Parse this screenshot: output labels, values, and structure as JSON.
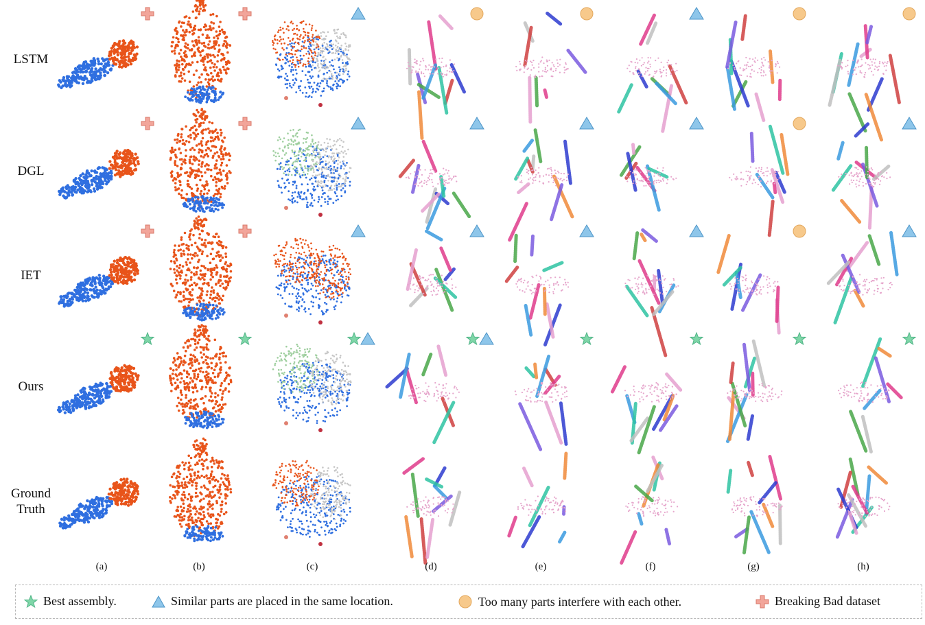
{
  "rows": [
    {
      "label": [
        "LSTM"
      ],
      "markers": [
        "cross",
        "cross",
        "triangle",
        "circle",
        "circle",
        "triangle",
        "circle",
        "circle"
      ]
    },
    {
      "label": [
        "DGL"
      ],
      "markers": [
        "cross",
        "cross",
        "triangle",
        "triangle",
        "triangle",
        "triangle",
        "circle",
        "triangle"
      ]
    },
    {
      "label": [
        "IET"
      ],
      "markers": [
        "cross",
        "cross",
        "triangle",
        "triangle",
        "triangle",
        "triangle",
        "circle",
        "triangle"
      ]
    },
    {
      "label": [
        "Ours"
      ],
      "markers": [
        "star",
        "star",
        "star+triangle",
        "star+triangle",
        "star",
        "star",
        "star",
        "star"
      ]
    },
    {
      "label": [
        "Ground",
        "Truth"
      ],
      "markers": [
        "",
        "",
        "",
        "",
        "",
        "",
        "",
        ""
      ]
    }
  ],
  "columns": [
    "(a)",
    "(b)",
    "(c)",
    "(d)",
    "(e)",
    "(f)",
    "(g)",
    "(h)"
  ],
  "legend": [
    {
      "icon": "star",
      "text": "Best assembly."
    },
    {
      "icon": "triangle",
      "text": "Similar parts are placed in the same location."
    },
    {
      "icon": "circle",
      "text": "Too many parts interfere with each other."
    },
    {
      "icon": "cross",
      "text": "Breaking Bad dataset"
    }
  ],
  "colors": {
    "orange": "#e8541a",
    "blue": "#2f6fe0",
    "star": "#7fd6a8",
    "triangle": "#8ec6ea",
    "circle": "#f7c98b",
    "cross": "#f2a59a"
  }
}
